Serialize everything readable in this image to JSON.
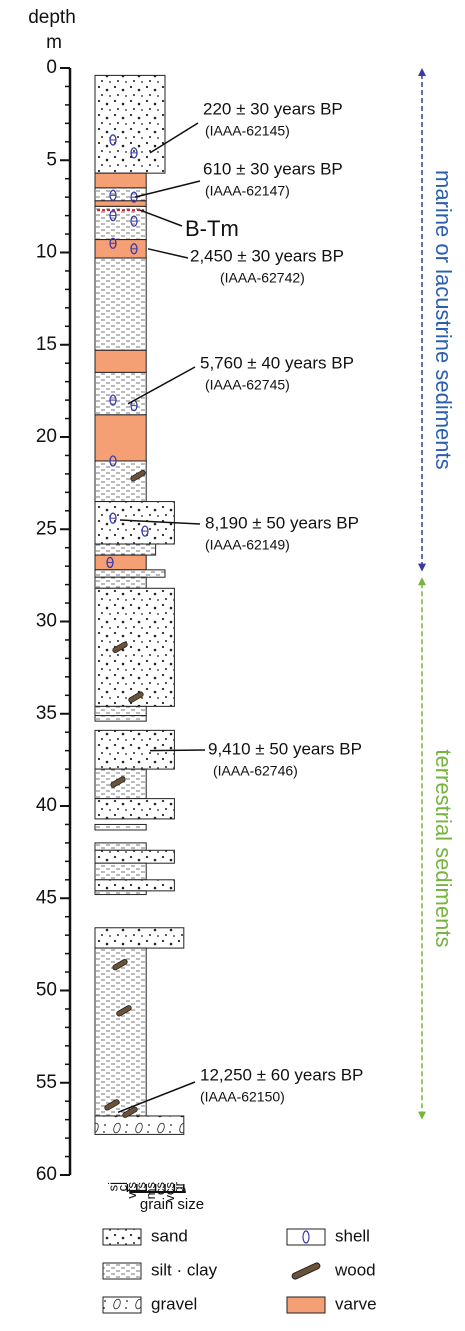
{
  "header": {
    "depth": "depth",
    "unit": "m"
  },
  "axis": {
    "ylim": [
      0,
      60
    ],
    "yticks": [
      0,
      5,
      10,
      15,
      20,
      25,
      30,
      35,
      40,
      45,
      50,
      55,
      60
    ]
  },
  "grain_size": {
    "title": "grain size",
    "classes": [
      "si",
      "cl",
      "vfs",
      "fs",
      "ms",
      "cs",
      "vcs",
      "gr"
    ]
  },
  "layers": [
    {
      "top": 0.4,
      "bottom": 5.7,
      "grain": "cs",
      "facies": "sand"
    },
    {
      "top": 5.7,
      "bottom": 6.5,
      "grain": "fs",
      "facies": "varve"
    },
    {
      "top": 6.5,
      "bottom": 7.2,
      "grain": "fs",
      "facies": "silt · clay"
    },
    {
      "top": 7.2,
      "bottom": 7.5,
      "grain": "fs",
      "facies": "varve"
    },
    {
      "top": 7.5,
      "bottom": 9.3,
      "grain": "fs",
      "facies": "silt · clay"
    },
    {
      "top": 9.3,
      "bottom": 10.3,
      "grain": "fs",
      "facies": "varve"
    },
    {
      "top": 10.3,
      "bottom": 15.3,
      "grain": "fs",
      "facies": "silt · clay"
    },
    {
      "top": 15.3,
      "bottom": 16.5,
      "grain": "fs",
      "facies": "varve"
    },
    {
      "top": 16.5,
      "bottom": 18.8,
      "grain": "fs",
      "facies": "silt · clay"
    },
    {
      "top": 18.8,
      "bottom": 21.3,
      "grain": "fs",
      "facies": "varve"
    },
    {
      "top": 21.3,
      "bottom": 23.5,
      "grain": "fs",
      "facies": "silt · clay"
    },
    {
      "top": 23.5,
      "bottom": 25.8,
      "grain": "vcs",
      "facies": "sand"
    },
    {
      "top": 25.8,
      "bottom": 26.4,
      "grain": "ms",
      "facies": "silt · clay"
    },
    {
      "top": 26.4,
      "bottom": 27.2,
      "grain": "fs",
      "facies": "varve"
    },
    {
      "top": 27.2,
      "bottom": 27.6,
      "grain": "cs",
      "facies": "silt · clay"
    },
    {
      "top": 27.6,
      "bottom": 28.2,
      "grain": "fs",
      "facies": "silt · clay"
    },
    {
      "top": 28.2,
      "bottom": 34.6,
      "grain": "vcs",
      "facies": "sand"
    },
    {
      "top": 34.6,
      "bottom": 35.1,
      "grain": "fs",
      "facies": "silt · clay"
    },
    {
      "top": 35.1,
      "bottom": 35.4,
      "grain": "fs",
      "facies": "silt · clay"
    },
    {
      "top": 35.9,
      "bottom": 38.0,
      "grain": "vcs",
      "facies": "sand"
    },
    {
      "top": 38.0,
      "bottom": 39.6,
      "grain": "fs",
      "facies": "silt · clay"
    },
    {
      "top": 39.6,
      "bottom": 40.7,
      "grain": "vcs",
      "facies": "sand"
    },
    {
      "top": 41.0,
      "bottom": 41.3,
      "grain": "fs",
      "facies": "silt · clay"
    },
    {
      "top": 42.0,
      "bottom": 42.4,
      "grain": "fs",
      "facies": "silt · clay"
    },
    {
      "top": 42.4,
      "bottom": 43.1,
      "grain": "vcs",
      "facies": "sand"
    },
    {
      "top": 43.1,
      "bottom": 44.0,
      "grain": "fs",
      "facies": "silt · clay"
    },
    {
      "top": 44.0,
      "bottom": 44.6,
      "grain": "vcs",
      "facies": "sand"
    },
    {
      "top": 44.6,
      "bottom": 44.8,
      "grain": "fs",
      "facies": "silt · clay"
    },
    {
      "top": 46.6,
      "bottom": 47.7,
      "grain": "gr",
      "facies": "sand"
    },
    {
      "top": 47.7,
      "bottom": 56.8,
      "grain": "fs",
      "facies": "silt · clay"
    },
    {
      "top": 56.8,
      "bottom": 57.8,
      "grain": "gr",
      "facies": "gravel"
    }
  ],
  "shells": [
    3.9,
    4.6,
    6.9,
    7.0,
    8.0,
    8.3,
    9.5,
    9.8,
    18.0,
    18.3,
    21.3,
    24.4,
    25.1,
    26.8
  ],
  "wood": [
    22.1,
    31.4,
    34.1,
    38.7,
    48.6,
    51.1,
    56.2,
    56.6
  ],
  "tephra": {
    "label": "B-Tm",
    "depth": 7.7
  },
  "dates": [
    {
      "age": "220 ± 30 years BP",
      "lab": "(IAAA-62145)",
      "depth": 4.6
    },
    {
      "age": "610 ± 30 years BP",
      "lab": "(IAAA-62147)",
      "depth": 7.0
    },
    {
      "age": "2,450 ± 30 years BP",
      "lab": "(IAAA-62742)",
      "depth": 9.8
    },
    {
      "age": "5,760 ± 40 years BP",
      "lab": "(IAAA-62745)",
      "depth": 18.2
    },
    {
      "age": "8,190 ± 50 years BP",
      "lab": "(IAAA-62149)",
      "depth": 24.5
    },
    {
      "age": "9,410 ± 50 years BP",
      "lab": "(IAAA-62746)",
      "depth": 37.0
    },
    {
      "age": "12,250 ± 60 years BP",
      "lab": "(IAAA-62150)",
      "depth": 56.6
    }
  ],
  "environments": [
    {
      "label": "marine or lacustrine sediments",
      "top": 0,
      "bottom": 27.3,
      "color": "#2a5fb0",
      "arrow_color": "#3a3aa0"
    },
    {
      "label": "terrestrial sediments",
      "top": 27.6,
      "bottom": 57.0,
      "color": "#76b33f",
      "arrow_color": "#76b33f"
    }
  ],
  "legend": {
    "items": [
      {
        "label": "sand"
      },
      {
        "label": "silt · clay"
      },
      {
        "label": "gravel"
      },
      {
        "label": "shell"
      },
      {
        "label": "wood"
      },
      {
        "label": "varve"
      }
    ]
  },
  "varve_color": "#f5a074"
}
